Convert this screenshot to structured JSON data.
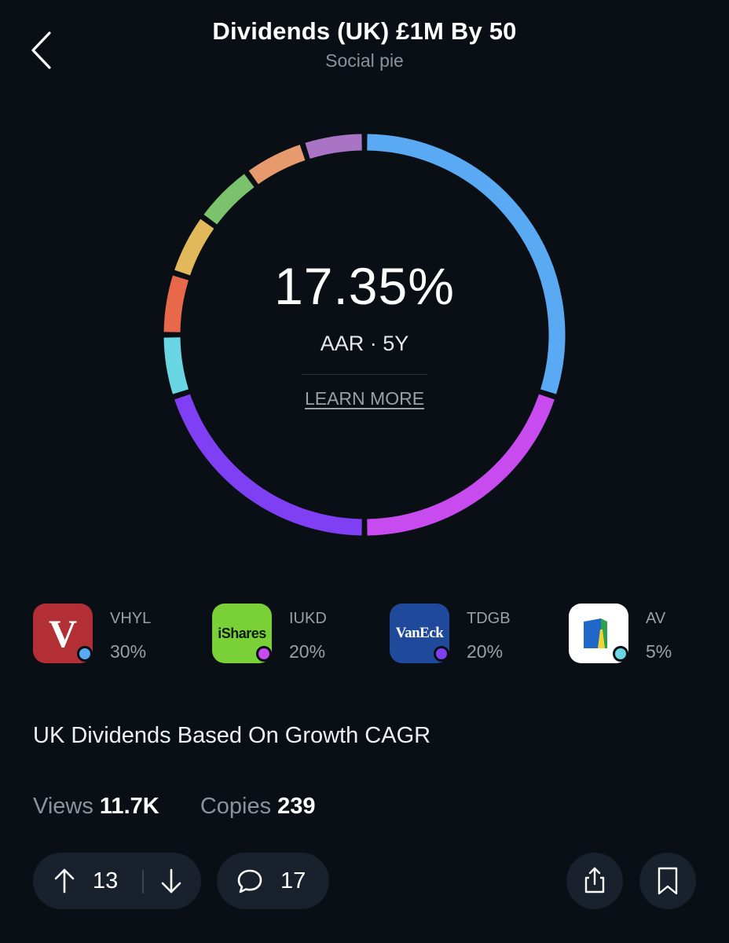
{
  "header": {
    "title": "Dividends (UK) £1M By 50",
    "subtitle": "Social pie"
  },
  "ring": {
    "value": "17.35%",
    "label": "AAR · 5Y",
    "learn_more": "LEARN MORE",
    "segments": [
      {
        "color": "#5aaaf3",
        "share": 30
      },
      {
        "color": "#c74bef",
        "share": 20
      },
      {
        "color": "#7f3ff2",
        "share": 20
      },
      {
        "color": "#6bd6e3",
        "share": 5
      },
      {
        "color": "#e8684a",
        "share": 5
      },
      {
        "color": "#e2b95a",
        "share": 5
      },
      {
        "color": "#7bc26d",
        "share": 5
      },
      {
        "color": "#e69a6e",
        "share": 5
      },
      {
        "color": "#a874c3",
        "share": 5
      }
    ]
  },
  "holdings": [
    {
      "ticker": "VHYL",
      "percent": "30%",
      "logo_text": "V",
      "logo_bg": "#b12f35",
      "dot_color": "#5aaaf3"
    },
    {
      "ticker": "IUKD",
      "percent": "20%",
      "logo_text": "iShares",
      "logo_bg": "#7ad037",
      "dot_color": "#c74bef"
    },
    {
      "ticker": "TDGB",
      "percent": "20%",
      "logo_text": "VanEck",
      "logo_bg": "#1f4a9c",
      "dot_color": "#7f3ff2"
    },
    {
      "ticker": "AV",
      "percent": "5%",
      "logo_text": "",
      "logo_bg": "#ffffff",
      "dot_color": "#6bd6e3"
    }
  ],
  "description": "UK Dividends Based On Growth CAGR",
  "stats": {
    "views_label": "Views",
    "views_value": "11.7K",
    "copies_label": "Copies",
    "copies_value": "239"
  },
  "actions": {
    "votes": "13",
    "comments": "17"
  },
  "icons": {
    "back": "chevron-left-icon",
    "upvote": "arrow-up-icon",
    "downvote": "arrow-down-icon",
    "comment": "speech-bubble-icon",
    "share": "share-icon",
    "bookmark": "bookmark-icon"
  }
}
